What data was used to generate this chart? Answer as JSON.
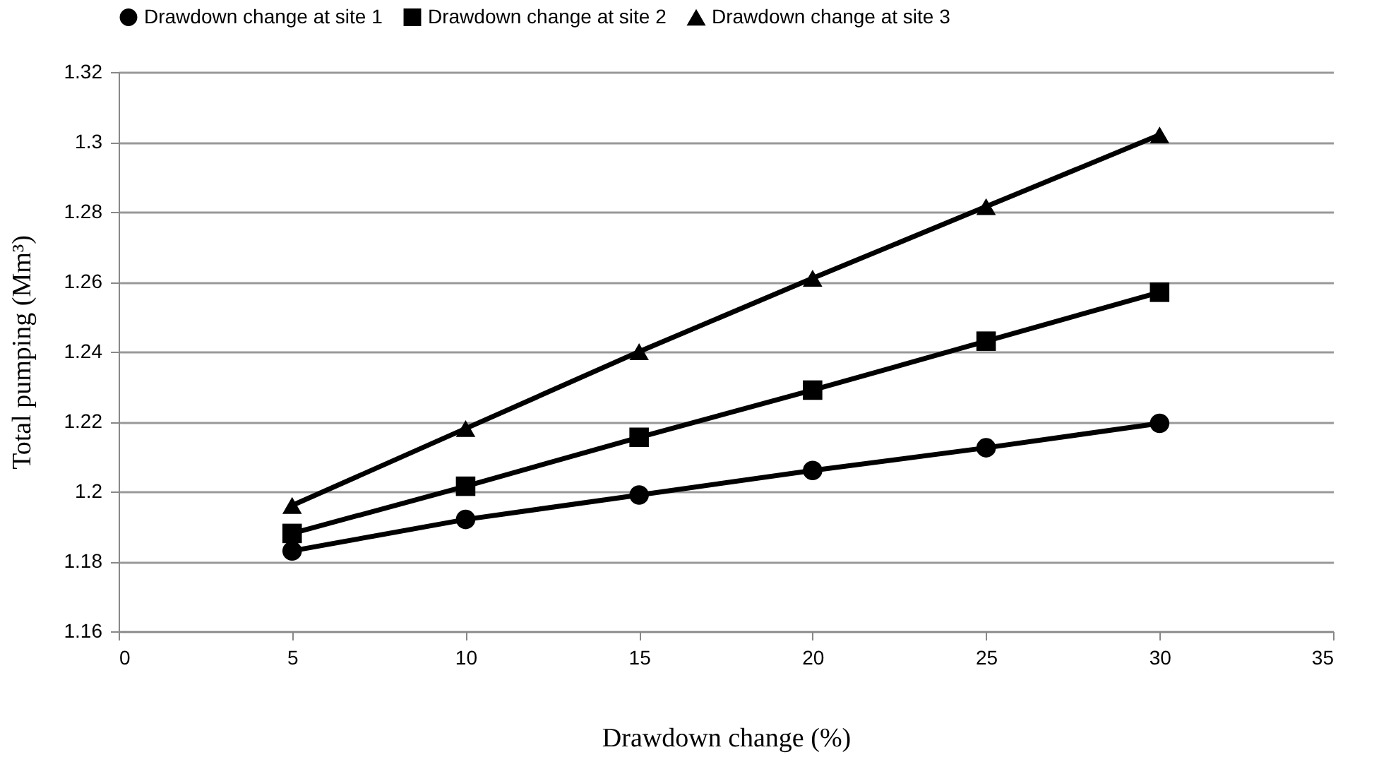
{
  "chart_data": {
    "type": "line",
    "xlabel": "Drawdown change (%)",
    "ylabel": "Total pumping (Mm³)",
    "x": [
      5,
      10,
      15,
      20,
      25,
      30
    ],
    "series": [
      {
        "name": "Drawdown change at site 1",
        "color": "#000000",
        "marker": "circle",
        "values": [
          1.183,
          1.192,
          1.199,
          1.206,
          1.2125,
          1.2195
        ]
      },
      {
        "name": "Drawdown change at site 2",
        "color": "#000000",
        "marker": "square",
        "values": [
          1.188,
          1.2015,
          1.2155,
          1.229,
          1.243,
          1.257
        ]
      },
      {
        "name": "Drawdown change at site 3",
        "color": "#000000",
        "marker": "triangle",
        "values": [
          1.196,
          1.218,
          1.24,
          1.261,
          1.2815,
          1.302
        ]
      }
    ],
    "xlim": [
      0,
      35
    ],
    "xticks": [
      0,
      5,
      10,
      15,
      20,
      25,
      30,
      35
    ],
    "ylim": [
      1.16,
      1.32
    ],
    "yticks": [
      1.16,
      1.18,
      1.2,
      1.22,
      1.24,
      1.26,
      1.28,
      1.3,
      1.32
    ],
    "grid": "y",
    "legend": "top",
    "line_style": "solid"
  }
}
